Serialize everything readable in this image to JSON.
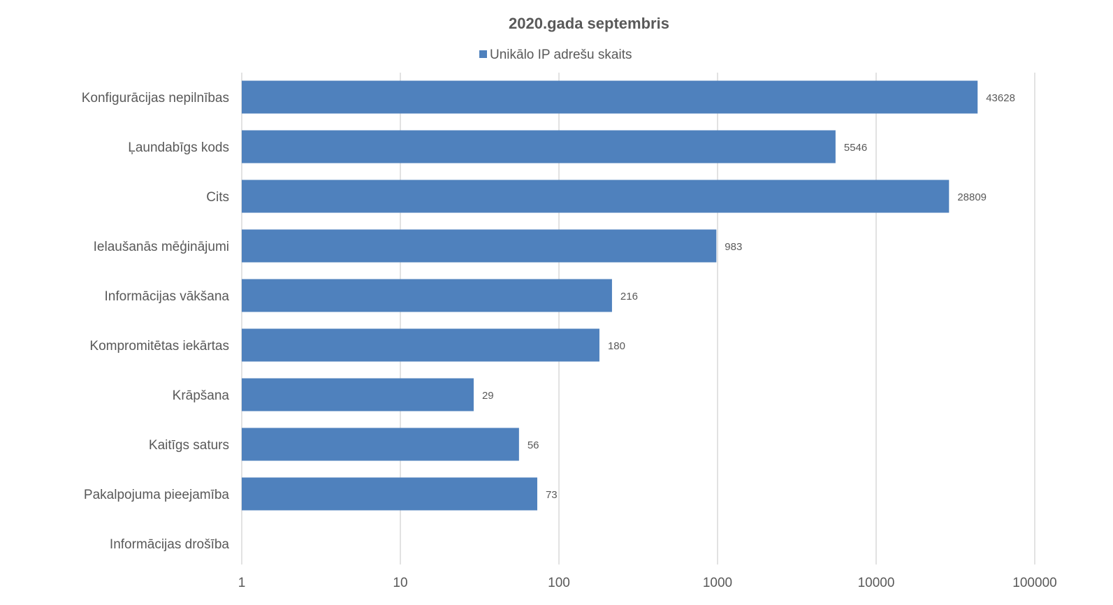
{
  "chart_data": {
    "type": "bar",
    "orientation": "horizontal",
    "title": "2020.gada septembris",
    "legend_position": "top",
    "x_scale": "log",
    "xlim": [
      1,
      100000
    ],
    "x_ticks": [
      "1",
      "10",
      "100",
      "1000",
      "10000",
      "100000"
    ],
    "grid": true,
    "bar_color": "#4f81bd",
    "categories": [
      "Konfigurācijas nepilnības",
      "Ļaundabīgs kods",
      "Cits",
      "Ielaušanās mēģinājumi",
      "Informācijas vākšana",
      "Kompromitētas iekārtas",
      "Krāpšana",
      "Kaitīgs saturs",
      "Pakalpojuma pieejamība",
      "Informācijas drošība"
    ],
    "series": [
      {
        "name": "Unikālo IP adrešu skaits",
        "values": [
          43628,
          5546,
          28809,
          983,
          216,
          180,
          29,
          56,
          73,
          null
        ],
        "labels": [
          "43628",
          "5546",
          "28809",
          "983",
          "216",
          "180",
          "29",
          "56",
          "73",
          ""
        ]
      }
    ]
  }
}
